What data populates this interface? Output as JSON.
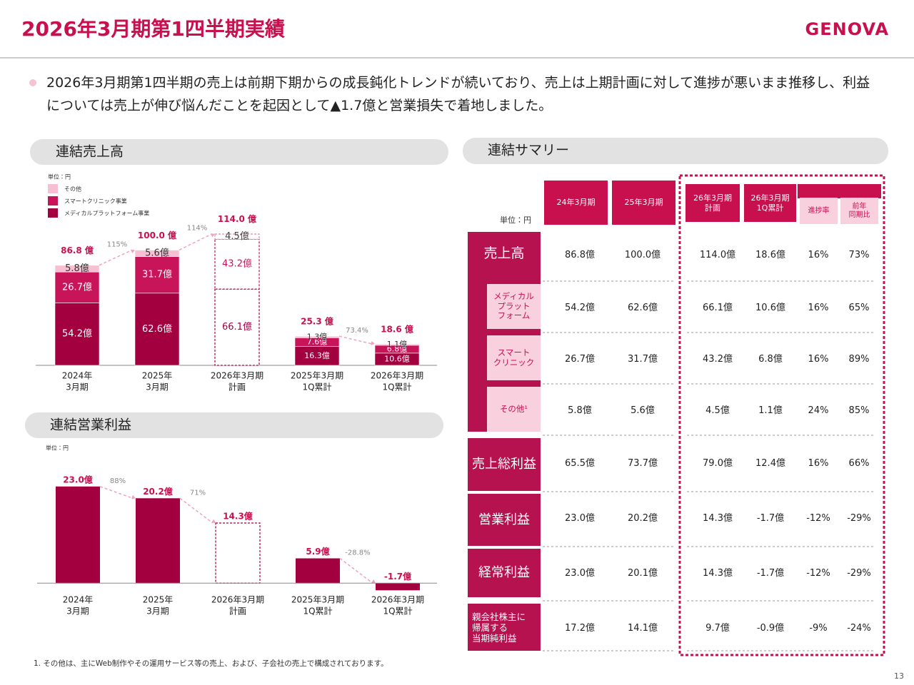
{
  "header": {
    "title": "2026年3月期第1四半期実績",
    "logo": "GENOVA"
  },
  "bullet": "2026年3月期第1四半期の売上は前期下期からの成長鈍化トレンドが続いており、売上は上期計画に対して進捗が悪いまま推移し、利益については売上が伸び悩んだことを起因として▲1.7億と営業損失で着地しました。",
  "sales_chart": {
    "type": "bar",
    "title": "連結売上高",
    "unit": "単位：円",
    "categories": [
      [
        "2024年",
        "3月期"
      ],
      [
        "2025年",
        "3月期"
      ],
      [
        "2026年3月期",
        "計画"
      ],
      [
        "2025年3月期",
        "1Q累計"
      ],
      [
        "2026年3月期",
        "1Q累計"
      ]
    ],
    "series": [
      {
        "name": "メディカルプラットフォーム事業",
        "color": "#a3003f",
        "values": [
          54.2,
          62.6,
          66.1,
          16.3,
          10.6
        ],
        "value_labels": [
          "54.2億",
          "62.6億",
          "66.1億",
          "16.3億",
          "10.6億"
        ]
      },
      {
        "name": "スマートクリニック事業",
        "color": "#c8155a",
        "values": [
          26.7,
          31.7,
          43.2,
          7.6,
          6.8
        ],
        "value_labels": [
          "26.7億",
          "31.7億",
          "43.2億",
          "7.6億",
          "6.8億"
        ]
      },
      {
        "name": "その他",
        "color": "#f7bfd2",
        "values": [
          5.8,
          5.6,
          4.5,
          1.3,
          1.1
        ],
        "value_labels": [
          "5.8億",
          "5.6億",
          "4.5億",
          "1.3億",
          "1.1億"
        ]
      }
    ],
    "totals": [
      86.8,
      100.0,
      114.0,
      25.3,
      18.6
    ],
    "total_labels": [
      "86.8 億",
      "100.0 億",
      "114.0 億",
      "25.3 億",
      "18.6 億"
    ],
    "growth_labels": [
      null,
      "115%",
      "114%",
      null,
      "73.4%"
    ],
    "outline": [
      false,
      false,
      true,
      false,
      false
    ],
    "ylim": [
      0,
      120
    ]
  },
  "profit_chart": {
    "type": "bar",
    "title": "連結営業利益",
    "unit": "単位：円",
    "categories": [
      [
        "2024年",
        "3月期"
      ],
      [
        "2025年",
        "3月期"
      ],
      [
        "2026年3月期",
        "計画"
      ],
      [
        "2025年3月期",
        "1Q累計"
      ],
      [
        "2026年3月期",
        "1Q累計"
      ]
    ],
    "color": "#a3003f",
    "values": [
      23.0,
      20.2,
      14.3,
      5.9,
      -1.7
    ],
    "value_labels": [
      "23.0億",
      "20.2億",
      "14.3億",
      "5.9億",
      "-1.7億"
    ],
    "growth_labels": [
      null,
      "88%",
      "71%",
      null,
      "-28.8%"
    ],
    "outline": [
      false,
      false,
      true,
      false,
      false
    ],
    "ylim": [
      -2.5,
      25
    ]
  },
  "summary": {
    "title": "連結サマリー",
    "unit": "単位：円",
    "columns": [
      "24年3月期",
      "25年3月期",
      "26年3月期\n計画",
      "26年3月期\n1Q累計",
      "進捗率",
      "前年\n同期比"
    ],
    "rows": [
      {
        "label": "売上高",
        "cells": [
          "86.8億",
          "100.0億",
          "114.0億",
          "18.6億",
          "16%",
          "73%"
        ]
      },
      {
        "label": "メディカル\nプラット\nフォーム",
        "cells": [
          "54.2億",
          "62.6億",
          "66.1億",
          "10.6億",
          "16%",
          "65%"
        ]
      },
      {
        "label": "スマート\nクリニック",
        "cells": [
          "26.7億",
          "31.7億",
          "43.2億",
          "6.8億",
          "16%",
          "89%"
        ]
      },
      {
        "label": "その他¹",
        "cells": [
          "5.8億",
          "5.6億",
          "4.5億",
          "1.1億",
          "24%",
          "85%"
        ]
      },
      {
        "label": "売上総利益",
        "cells": [
          "65.5億",
          "73.7億",
          "79.0億",
          "12.4億",
          "16%",
          "66%"
        ]
      },
      {
        "label": "営業利益",
        "cells": [
          "23.0億",
          "20.2億",
          "14.3億",
          "-1.7億",
          "-12%",
          "-29%"
        ]
      },
      {
        "label": "経常利益",
        "cells": [
          "23.0億",
          "20.1億",
          "14.3億",
          "-1.7億",
          "-12%",
          "-29%"
        ]
      },
      {
        "label": "親会社株主に\n帰属する\n当期純利益",
        "cells": [
          "17.2億",
          "14.1億",
          "9.7億",
          "-0.9億",
          "-9%",
          "-24%"
        ]
      }
    ]
  },
  "footnote": "1. その他は、主にWeb制作やその運用サービス等の売上、および、子会社の売上で構成されております。",
  "page_number": "13"
}
